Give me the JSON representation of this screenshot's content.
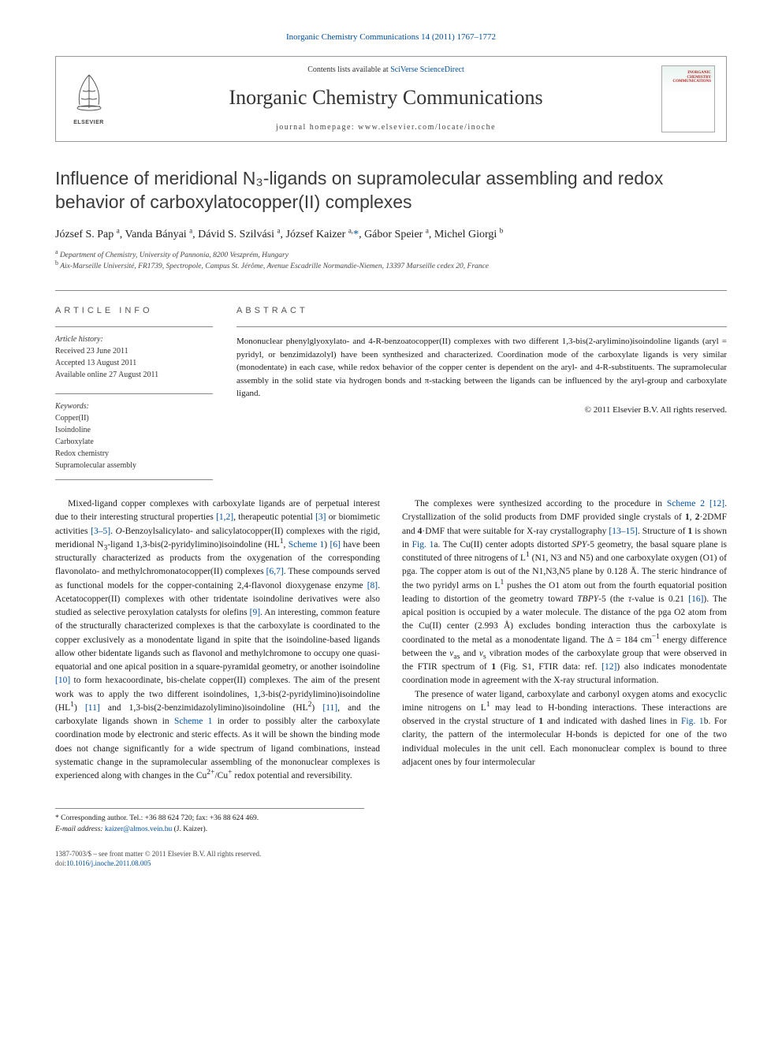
{
  "journal_ref": {
    "text": "Inorganic Chemistry Communications 14 (2011) 1767–1772",
    "link_text": "Inorganic Chemistry Communications 14 (2011) 1767–1772"
  },
  "masthead": {
    "elsevier": "ELSEVIER",
    "contents_prefix": "Contents lists available at ",
    "contents_link": "SciVerse ScienceDirect",
    "journal_title": "Inorganic Chemistry Communications",
    "homepage_prefix": "journal homepage: ",
    "homepage_url": "www.elsevier.com/locate/inoche",
    "cover_label_line1": "INORGANIC",
    "cover_label_line2": "CHEMISTRY",
    "cover_label_line3": "COMMUNICATIONS"
  },
  "title": "Influence of meridional N₃-ligands on supramolecular assembling and redox behavior of carboxylatocopper(II) complexes",
  "authors_html": "József S. Pap <sup>a</sup>, Vanda Bányai <sup>a</sup>, Dávid S. Szilvási <sup>a</sup>, József Kaizer <sup>a,</sup><a class=\"author-link\" href=\"#\">*</a>, Gábor Speier <sup>a</sup>, Michel Giorgi <sup>b</sup>",
  "affiliations": {
    "a": "Department of Chemistry, University of Pannonia, 8200 Veszprém, Hungary",
    "b": "Aix-Marseille Université, FR1739, Spectropole, Campus St. Jérôme, Avenue Escadrille Normandie-Niemen, 13397 Marseille cedex 20, France"
  },
  "article_info": {
    "heading": "ARTICLE INFO",
    "history_label": "Article history:",
    "received": "Received 23 June 2011",
    "accepted": "Accepted 13 August 2011",
    "online": "Available online 27 August 2011",
    "keywords_label": "Keywords:",
    "keywords": [
      "Copper(II)",
      "Isoindoline",
      "Carboxylate",
      "Redox chemistry",
      "Supramolecular assembly"
    ]
  },
  "abstract": {
    "heading": "ABSTRACT",
    "text": "Mononuclear phenylglyoxylato- and 4-R-benzoatocopper(II) complexes with two different 1,3-bis(2-arylimino)isoindoline ligands (aryl = pyridyl, or benzimidazolyl) have been synthesized and characterized. Coordination mode of the carboxylate ligands is very similar (monodentate) in each case, while redox behavior of the copper center is dependent on the aryl- and 4-R-substituents. The supramolecular assembly in the solid state via hydrogen bonds and π-stacking between the ligands can be influenced by the aryl-group and carboxylate ligand.",
    "copyright": "© 2011 Elsevier B.V. All rights reserved."
  },
  "body": {
    "p1_html": "Mixed-ligand copper complexes with carboxylate ligands are of perpetual interest due to their interesting structural properties <a class=\"ref-link\" href=\"#\">[1,2]</a>, therapeutic potential <a class=\"ref-link\" href=\"#\">[3]</a> or biomimetic activities <a class=\"ref-link\" href=\"#\">[3–5]</a>. <span class=\"italic\">O</span>-Benzoylsalicylato- and salicylatocopper(II) complexes with the rigid, meridional N<sub>3</sub>-ligand 1,3-bis(2-pyridylimino)isoindoline (HL<sup>1</sup>, <a class=\"scheme-link\" href=\"#\">Scheme 1</a>) <a class=\"ref-link\" href=\"#\">[6]</a> have been structurally characterized as products from the oxygenation of the corresponding flavonolato- and methylchromonatocopper(II) complexes <a class=\"ref-link\" href=\"#\">[6,7]</a>. These compounds served as functional models for the copper-containing 2,4-flavonol dioxygenase enzyme <a class=\"ref-link\" href=\"#\">[8]</a>. Acetatocopper(II) complexes with other tridentate isoindoline derivatives were also studied as selective peroxylation catalysts for olefins <a class=\"ref-link\" href=\"#\">[9]</a>. An interesting, common feature of the structurally characterized complexes is that the carboxylate is coordinated to the copper exclusively as a monodentate ligand in spite that the isoindoline-based ligands allow other bidentate ligands such as flavonol and methylchromone to occupy one quasi-equatorial and one apical position in a square-pyramidal geometry, or another isoindoline <a class=\"ref-link\" href=\"#\">[10]</a> to form hexacoordinate, bis-chelate copper(II) complexes. The aim of the present work was to apply the two different isoindolines, 1,3-bis(2-pyridylimino)isoindoline (HL<sup>1</sup>) <a class=\"ref-link\" href=\"#\">[11]</a> and 1,3-bis(2-benzimidazolylimino)isoindoline (HL<sup>2</sup>) <a class=\"ref-link\" href=\"#\">[11]</a>, and the carboxylate ligands shown in <a class=\"scheme-link\" href=\"#\">Scheme 1</a> in order to possibly alter the carboxylate coordination mode by electronic and steric effects. As it will be shown the binding mode does not change significantly for a wide spectrum of ligand combinations, instead systematic change in the supramolecular assembling of the mononuclear complexes is experienced along with changes in the Cu<sup>2+</sup>/Cu<sup>+</sup> redox potential and reversibility.",
    "p2_html": "The complexes were synthesized according to the procedure in <a class=\"scheme-link\" href=\"#\">Scheme 2</a> <a class=\"ref-link\" href=\"#\">[12]</a>. Crystallization of the solid products from DMF provided single crystals of <b>1</b>, <b>2</b>·2DMF and <b>4</b>·DMF that were suitable for X-ray crystallography <a class=\"ref-link\" href=\"#\">[13–15]</a>. Structure of <b>1</b> is shown in <a class=\"fig-link\" href=\"#\">Fig. 1</a>a. The Cu(II) center adopts distorted <span class=\"italic\">SPY</span>-5 geometry, the basal square plane is constituted of three nitrogens of L<sup>1</sup> (N1, N3 and N5) and one carboxylate oxygen (O1) of pga. The copper atom is out of the N1,N3,N5 plane by 0.128 Å. The steric hindrance of the two pyridyl arms on L<sup>1</sup> pushes the O1 atom out from the fourth equatorial position leading to distortion of the geometry toward <span class=\"italic\">TBPY</span>-5 (the <span class=\"tau\">τ</span>-value is 0.21 <a class=\"ref-link\" href=\"#\">[16]</a>). The apical position is occupied by a water molecule. The distance of the pga O2 atom from the Cu(II) center (2.993 Å) excludes bonding interaction thus the carboxylate is coordinated to the metal as a monodentate ligand. The Δ = 184 cm<sup>−1</sup> energy difference between the <span class=\"nu\">ν</span><sub>as</sub> and <span class=\"nu\">ν</span><sub>s</sub> vibration modes of the carboxylate group that were observed in the FTIR spectrum of <b>1</b> (Fig. S1, FTIR data: ref. <a class=\"ref-link\" href=\"#\">[12]</a>) also indicates monodentate coordination mode in agreement with the X-ray structural information.",
    "p3_html": "The presence of water ligand, carboxylate and carbonyl oxygen atoms and exocyclic imine nitrogens on L<sup>1</sup> may lead to H-bonding interactions. These interactions are observed in the crystal structure of <b>1</b> and indicated with dashed lines in <a class=\"fig-link\" href=\"#\">Fig. 1</a>b. For clarity, the pattern of the intermolecular H-bonds is depicted for one of the two individual molecules in the unit cell. Each mononuclear complex is bound to three adjacent ones by four intermolecular"
  },
  "footnote": {
    "corr_label": "* Corresponding author. Tel.: +36 88 624 720; fax: +36 88 624 469.",
    "email_label": "E-mail address:",
    "email": "kaizer@almos.vein.hu",
    "email_name": "(J. Kaizer)."
  },
  "footer": {
    "issn_line": "1387-7003/$ – see front matter © 2011 Elsevier B.V. All rights reserved.",
    "doi_prefix": "doi:",
    "doi": "10.1016/j.inoche.2011.08.005"
  },
  "colors": {
    "link": "#0050a0",
    "rule": "#888888",
    "text": "#1a1a1a",
    "muted": "#444444"
  }
}
